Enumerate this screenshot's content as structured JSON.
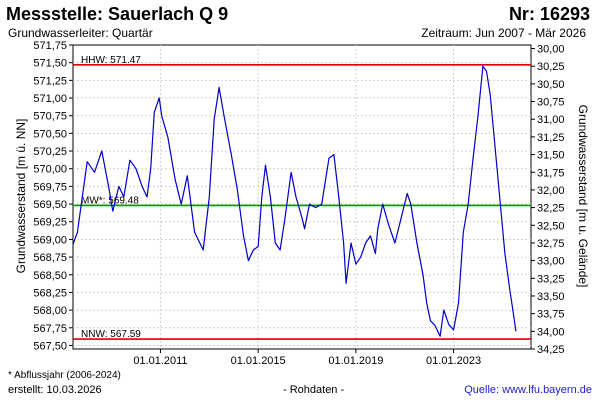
{
  "header": {
    "title": "Messstelle: Sauerlach Q 9",
    "number": "Nr: 16293",
    "subtitle": "Grundwasserleiter: Quartär",
    "period": "Zeitraum: Jun 2007 - Mär 2026"
  },
  "footer": {
    "footnote": "* Abflussjahr (2006-2024)",
    "created": "erstellt:  10.03.2026",
    "rawdata": "- Rohdaten -",
    "source": "Quelle: www.lfu.bayern.de"
  },
  "chart_data": {
    "type": "line",
    "title": "",
    "ylabel_left": "Grundwasserstand [m ü. NN]",
    "ylabel_right": "Grundwasserstand [m u. Gelände]",
    "ylim": [
      567.45,
      571.75
    ],
    "ylim_right": [
      34.25,
      29.95
    ],
    "xlim": [
      2007.42,
      2026.17
    ],
    "yticks_left": [
      "571,75",
      "571,50",
      "571,25",
      "571,00",
      "570,75",
      "570,50",
      "570,25",
      "570,00",
      "569,75",
      "569,50",
      "569,25",
      "569,00",
      "568,75",
      "568,50",
      "568,25",
      "568,00",
      "567,75",
      "567,50"
    ],
    "yticks_right": [
      "30,00",
      "30,25",
      "30,50",
      "30,75",
      "31,00",
      "31,25",
      "31,50",
      "31,75",
      "32,00",
      "32,25",
      "32,50",
      "32,75",
      "33,00",
      "33,25",
      "33,50",
      "33,75",
      "34,00",
      "34,25"
    ],
    "xticks": [
      {
        "label": "01.01.2011",
        "x": 2011.0
      },
      {
        "label": "01.01.2015",
        "x": 2015.0
      },
      {
        "label": "01.01.2019",
        "x": 2019.0
      },
      {
        "label": "01.01.2023",
        "x": 2023.0
      }
    ],
    "grid": true,
    "reference_lines": [
      {
        "label": "HHW: 571.47",
        "value": 571.47,
        "color": "#dd0000"
      },
      {
        "label": "MW*: 569.48",
        "value": 569.48,
        "color": "#009900"
      },
      {
        "label": "NNW: 567.59",
        "value": 567.59,
        "color": "#dd0000"
      }
    ],
    "series": [
      {
        "color": "#0000cc",
        "points": [
          [
            2007.42,
            568.93
          ],
          [
            2007.6,
            569.1
          ],
          [
            2007.8,
            569.6
          ],
          [
            2008.0,
            570.1
          ],
          [
            2008.3,
            569.95
          ],
          [
            2008.6,
            570.25
          ],
          [
            2008.9,
            569.7
          ],
          [
            2009.05,
            569.4
          ],
          [
            2009.3,
            569.75
          ],
          [
            2009.5,
            569.6
          ],
          [
            2009.75,
            570.12
          ],
          [
            2010.0,
            570.0
          ],
          [
            2010.25,
            569.75
          ],
          [
            2010.45,
            569.6
          ],
          [
            2010.6,
            570.0
          ],
          [
            2010.75,
            570.8
          ],
          [
            2010.95,
            571.0
          ],
          [
            2011.05,
            570.75
          ],
          [
            2011.3,
            570.45
          ],
          [
            2011.6,
            569.85
          ],
          [
            2011.85,
            569.5
          ],
          [
            2012.1,
            569.9
          ],
          [
            2012.4,
            569.1
          ],
          [
            2012.75,
            568.85
          ],
          [
            2013.0,
            569.6
          ],
          [
            2013.2,
            570.7
          ],
          [
            2013.4,
            571.15
          ],
          [
            2013.6,
            570.75
          ],
          [
            2013.9,
            570.2
          ],
          [
            2014.15,
            569.7
          ],
          [
            2014.4,
            569.05
          ],
          [
            2014.6,
            568.7
          ],
          [
            2014.8,
            568.85
          ],
          [
            2015.0,
            568.9
          ],
          [
            2015.15,
            569.6
          ],
          [
            2015.3,
            570.05
          ],
          [
            2015.5,
            569.6
          ],
          [
            2015.7,
            568.95
          ],
          [
            2015.9,
            568.85
          ],
          [
            2016.1,
            569.3
          ],
          [
            2016.35,
            569.95
          ],
          [
            2016.55,
            569.6
          ],
          [
            2016.8,
            569.3
          ],
          [
            2016.9,
            569.15
          ],
          [
            2017.1,
            569.5
          ],
          [
            2017.35,
            569.45
          ],
          [
            2017.6,
            569.5
          ],
          [
            2017.9,
            570.15
          ],
          [
            2018.1,
            570.2
          ],
          [
            2018.3,
            569.6
          ],
          [
            2018.5,
            568.95
          ],
          [
            2018.6,
            568.38
          ],
          [
            2018.8,
            568.95
          ],
          [
            2019.0,
            568.65
          ],
          [
            2019.2,
            568.75
          ],
          [
            2019.4,
            568.95
          ],
          [
            2019.6,
            569.05
          ],
          [
            2019.8,
            568.8
          ],
          [
            2019.9,
            569.15
          ],
          [
            2020.1,
            569.5
          ],
          [
            2020.35,
            569.2
          ],
          [
            2020.6,
            568.95
          ],
          [
            2020.85,
            569.3
          ],
          [
            2021.1,
            569.65
          ],
          [
            2021.25,
            569.5
          ],
          [
            2021.5,
            568.95
          ],
          [
            2021.75,
            568.5
          ],
          [
            2021.9,
            568.1
          ],
          [
            2022.05,
            567.85
          ],
          [
            2022.25,
            567.78
          ],
          [
            2022.45,
            567.63
          ],
          [
            2022.6,
            568.0
          ],
          [
            2022.8,
            567.8
          ],
          [
            2023.0,
            567.72
          ],
          [
            2023.2,
            568.1
          ],
          [
            2023.4,
            569.1
          ],
          [
            2023.6,
            569.5
          ],
          [
            2023.8,
            570.15
          ],
          [
            2024.0,
            570.75
          ],
          [
            2024.2,
            571.45
          ],
          [
            2024.35,
            571.38
          ],
          [
            2024.5,
            571.05
          ],
          [
            2024.7,
            570.3
          ],
          [
            2024.9,
            569.55
          ],
          [
            2025.1,
            568.8
          ],
          [
            2025.3,
            568.3
          ],
          [
            2025.45,
            567.95
          ],
          [
            2025.55,
            567.7
          ]
        ]
      }
    ]
  }
}
